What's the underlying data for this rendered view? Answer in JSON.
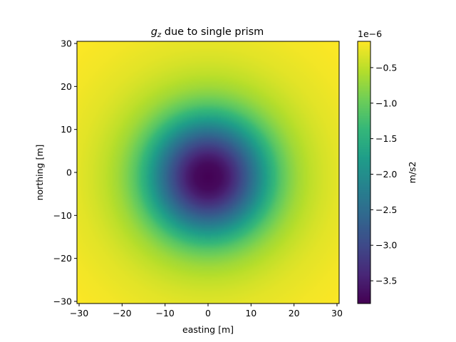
{
  "chart_data": {
    "type": "heatmap",
    "title_prefix": "g",
    "title_sub": "z",
    "title_rest": " due to single prism",
    "xlabel": "easting [m]",
    "ylabel": "northing [m]",
    "xlim": [
      -30.5,
      30.5
    ],
    "ylim": [
      -30.5,
      30.5
    ],
    "xticks": [
      -30,
      -20,
      -10,
      0,
      10,
      20,
      30
    ],
    "yticks": [
      -30,
      -20,
      -10,
      0,
      10,
      20,
      30
    ],
    "xtick_labels": [
      "−30",
      "−20",
      "−10",
      "0",
      "10",
      "20",
      "30"
    ],
    "ytick_labels": [
      "−30",
      "−20",
      "−10",
      "0",
      "10",
      "20",
      "30"
    ],
    "colormap": "viridis",
    "field_center": [
      0,
      -1
    ],
    "field": {
      "min": -3.82e-06,
      "max": -1.3e-07,
      "radial_profile": [
        {
          "r": 0,
          "value": -3.82e-06
        },
        {
          "r": 3,
          "value": -3.72e-06
        },
        {
          "r": 5,
          "value": -3.5e-06
        },
        {
          "r": 7,
          "value": -3.15e-06
        },
        {
          "r": 9,
          "value": -2.75e-06
        },
        {
          "r": 11,
          "value": -2.3e-06
        },
        {
          "r": 13,
          "value": -1.85e-06
        },
        {
          "r": 15,
          "value": -1.45e-06
        },
        {
          "r": 17,
          "value": -1.1e-06
        },
        {
          "r": 19,
          "value": -8.5e-07
        },
        {
          "r": 21,
          "value": -6.6e-07
        },
        {
          "r": 24,
          "value": -4.8e-07
        },
        {
          "r": 27,
          "value": -3.6e-07
        },
        {
          "r": 30,
          "value": -2.8e-07
        },
        {
          "r": 36,
          "value": -1.9e-07
        },
        {
          "r": 43,
          "value": -1.3e-07
        }
      ]
    },
    "colorbar": {
      "label": "m/s2",
      "offset_text": "1e−6",
      "ticks": [
        -3.5,
        -3.0,
        -2.5,
        -2.0,
        -1.5,
        -1.0,
        -0.5
      ],
      "tick_labels": [
        "−3.5",
        "−3.0",
        "−2.5",
        "−2.0",
        "−1.5",
        "−1.0",
        "−0.5"
      ],
      "range": [
        -3.82,
        -0.13
      ]
    },
    "grid": false
  }
}
